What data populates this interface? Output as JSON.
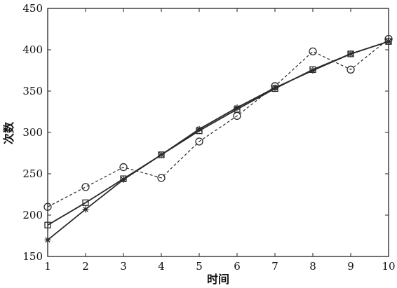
{
  "chart_data": {
    "type": "line",
    "xlabel": "时间",
    "ylabel": "次数",
    "xlim": [
      1,
      10
    ],
    "ylim": [
      150,
      450
    ],
    "x_ticks": [
      1,
      2,
      3,
      4,
      5,
      6,
      7,
      8,
      9,
      10
    ],
    "y_ticks": [
      150,
      200,
      250,
      300,
      350,
      400,
      450
    ],
    "grid": false,
    "series": [
      {
        "marker": "circle",
        "line": "dashed",
        "x": [
          1,
          2,
          3,
          4,
          5,
          6,
          7,
          8,
          9,
          10
        ],
        "values": [
          210,
          234,
          258,
          245,
          289,
          320,
          356,
          398,
          376,
          413
        ]
      },
      {
        "marker": "square",
        "line": "solid",
        "x": [
          1,
          2,
          3,
          4,
          5,
          6,
          7,
          8,
          9,
          10
        ],
        "values": [
          188,
          215,
          244,
          273,
          302,
          328,
          353,
          376,
          395,
          410
        ]
      },
      {
        "marker": "star",
        "line": "solid",
        "x": [
          1,
          2,
          3,
          4,
          5,
          6,
          7,
          8,
          9,
          10
        ],
        "values": [
          170,
          207,
          243,
          273,
          304,
          330,
          354,
          375,
          395,
          410
        ]
      }
    ]
  }
}
